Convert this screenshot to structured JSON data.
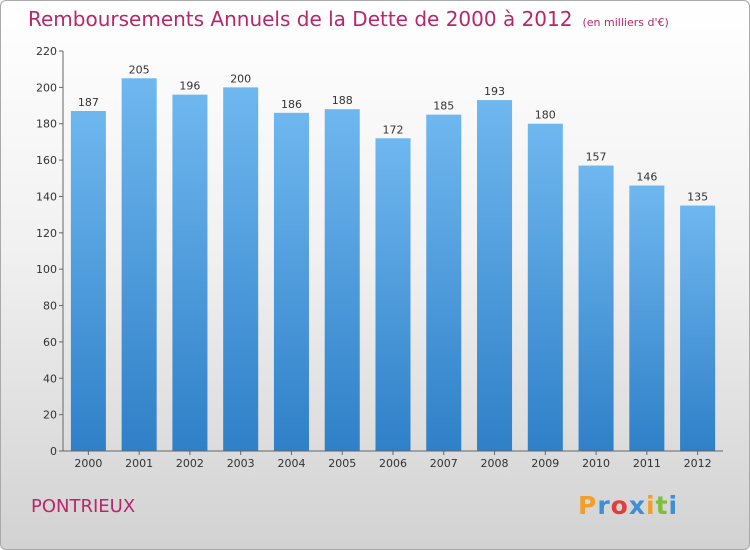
{
  "title": "Remboursements Annuels de la Dette de 2000 à 2012",
  "unit_note": "(en milliers d'€)",
  "commune": "PONTRIEUX",
  "logo": {
    "text": "Proxiti",
    "letter_colors": [
      "#f0a02a",
      "#3d8fd6",
      "#e23d3d",
      "#3d8fd6",
      "#f0a02a",
      "#7bbf3a",
      "#3d8fd6"
    ]
  },
  "colors": {
    "title": "#b8266b",
    "bar_light": "#6fb7ef",
    "bar_dark": "#2f80c8"
  },
  "chart_data": {
    "type": "bar",
    "title": "Remboursements Annuels de la Dette de 2000 à 2012",
    "subtitle": "(en milliers d'€)",
    "categories": [
      "2000",
      "2001",
      "2002",
      "2003",
      "2004",
      "2005",
      "2006",
      "2007",
      "2008",
      "2009",
      "2010",
      "2011",
      "2012"
    ],
    "values": [
      187,
      205,
      196,
      200,
      186,
      188,
      172,
      185,
      193,
      180,
      157,
      146,
      135
    ],
    "ylim": [
      0,
      220
    ],
    "yticks": [
      0,
      20,
      40,
      60,
      80,
      100,
      120,
      140,
      160,
      180,
      200,
      220
    ],
    "grid": false,
    "data_labels": true
  }
}
